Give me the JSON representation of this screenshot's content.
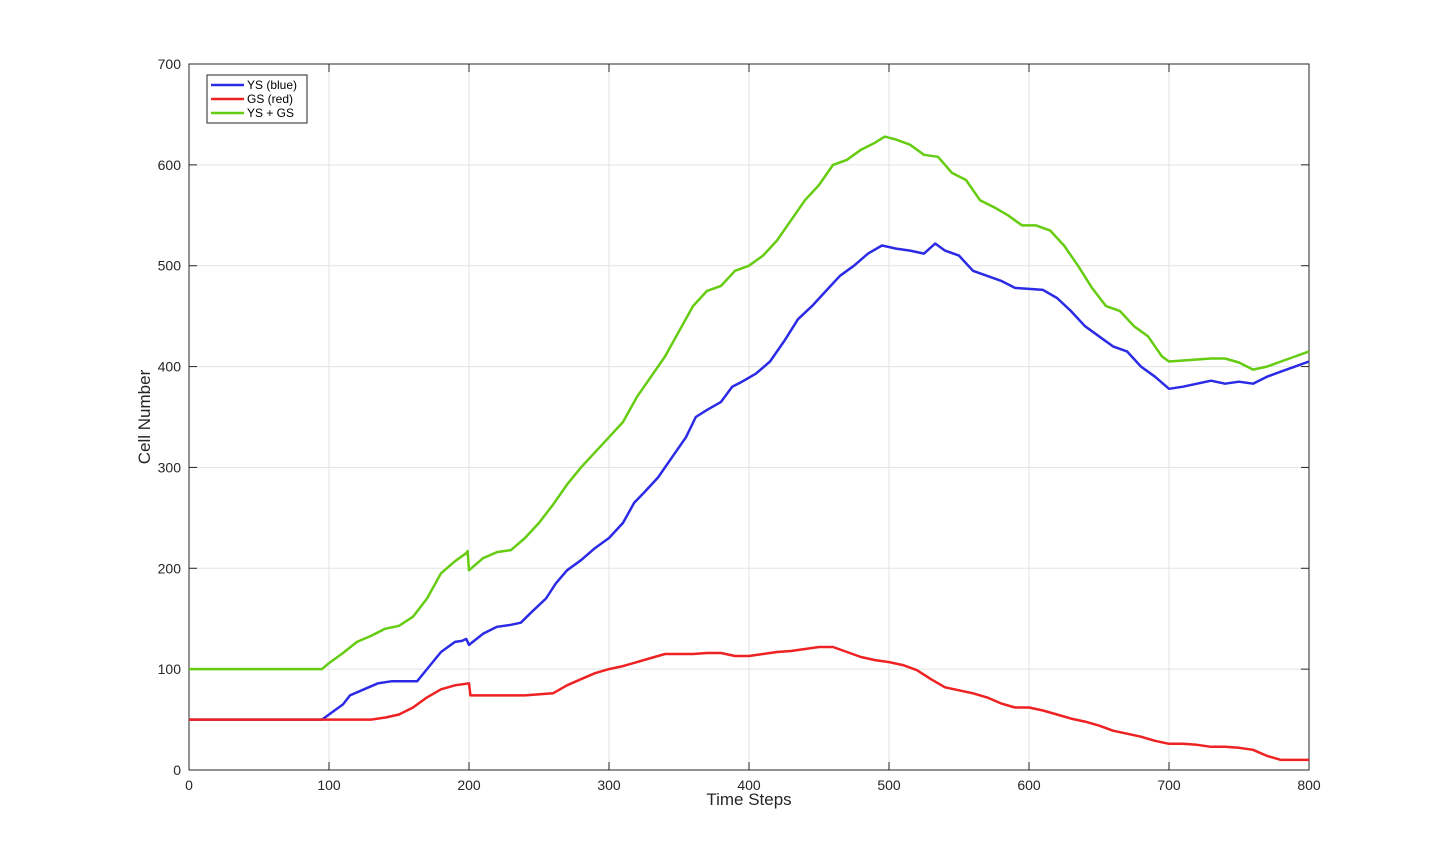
{
  "chart_data": {
    "type": "line",
    "title": "",
    "xlabel": "Time Steps",
    "ylabel": "Cell Number",
    "xlim": [
      0,
      800
    ],
    "ylim": [
      0,
      700
    ],
    "xticks": [
      0,
      100,
      200,
      300,
      400,
      500,
      600,
      700,
      800
    ],
    "yticks": [
      0,
      100,
      200,
      300,
      400,
      500,
      600,
      700
    ],
    "grid": true,
    "legend_position": "top-left",
    "series": [
      {
        "name": "YS (blue)",
        "color": "#2b2be6",
        "points": [
          [
            0,
            50
          ],
          [
            95,
            50
          ],
          [
            100,
            55
          ],
          [
            110,
            65
          ],
          [
            115,
            74
          ],
          [
            125,
            80
          ],
          [
            135,
            86
          ],
          [
            145,
            88
          ],
          [
            155,
            88
          ],
          [
            163,
            88
          ],
          [
            170,
            100
          ],
          [
            180,
            117
          ],
          [
            190,
            127
          ],
          [
            195,
            128
          ],
          [
            198,
            130
          ],
          [
            200,
            124
          ],
          [
            210,
            135
          ],
          [
            220,
            142
          ],
          [
            230,
            144
          ],
          [
            237,
            146
          ],
          [
            245,
            157
          ],
          [
            255,
            170
          ],
          [
            262,
            185
          ],
          [
            270,
            198
          ],
          [
            280,
            208
          ],
          [
            290,
            220
          ],
          [
            300,
            230
          ],
          [
            310,
            245
          ],
          [
            318,
            265
          ],
          [
            325,
            275
          ],
          [
            335,
            290
          ],
          [
            345,
            310
          ],
          [
            355,
            330
          ],
          [
            362,
            350
          ],
          [
            370,
            357
          ],
          [
            380,
            365
          ],
          [
            388,
            380
          ],
          [
            395,
            385
          ],
          [
            405,
            393
          ],
          [
            415,
            405
          ],
          [
            425,
            425
          ],
          [
            435,
            447
          ],
          [
            445,
            460
          ],
          [
            455,
            475
          ],
          [
            465,
            490
          ],
          [
            475,
            500
          ],
          [
            485,
            512
          ],
          [
            495,
            520
          ],
          [
            505,
            517
          ],
          [
            515,
            515
          ],
          [
            525,
            512
          ],
          [
            533,
            522
          ],
          [
            540,
            515
          ],
          [
            550,
            510
          ],
          [
            560,
            495
          ],
          [
            570,
            490
          ],
          [
            580,
            485
          ],
          [
            590,
            478
          ],
          [
            600,
            477
          ],
          [
            610,
            476
          ],
          [
            620,
            468
          ],
          [
            630,
            455
          ],
          [
            640,
            440
          ],
          [
            650,
            430
          ],
          [
            660,
            420
          ],
          [
            670,
            415
          ],
          [
            680,
            400
          ],
          [
            690,
            390
          ],
          [
            700,
            378
          ],
          [
            710,
            380
          ],
          [
            720,
            383
          ],
          [
            730,
            386
          ],
          [
            740,
            383
          ],
          [
            750,
            385
          ],
          [
            760,
            383
          ],
          [
            770,
            390
          ],
          [
            780,
            395
          ],
          [
            790,
            400
          ],
          [
            800,
            405
          ]
        ]
      },
      {
        "name": "GS (red)",
        "color": "#ee2222",
        "points": [
          [
            0,
            50
          ],
          [
            130,
            50
          ],
          [
            140,
            52
          ],
          [
            150,
            55
          ],
          [
            160,
            62
          ],
          [
            170,
            72
          ],
          [
            180,
            80
          ],
          [
            190,
            84
          ],
          [
            200,
            86
          ],
          [
            201,
            74
          ],
          [
            220,
            74
          ],
          [
            240,
            74
          ],
          [
            260,
            76
          ],
          [
            270,
            84
          ],
          [
            280,
            90
          ],
          [
            290,
            96
          ],
          [
            300,
            100
          ],
          [
            310,
            103
          ],
          [
            320,
            107
          ],
          [
            330,
            111
          ],
          [
            340,
            115
          ],
          [
            350,
            115
          ],
          [
            360,
            115
          ],
          [
            370,
            116
          ],
          [
            380,
            116
          ],
          [
            390,
            113
          ],
          [
            400,
            113
          ],
          [
            410,
            115
          ],
          [
            420,
            117
          ],
          [
            430,
            118
          ],
          [
            440,
            120
          ],
          [
            450,
            122
          ],
          [
            460,
            122
          ],
          [
            470,
            117
          ],
          [
            480,
            112
          ],
          [
            490,
            109
          ],
          [
            500,
            107
          ],
          [
            510,
            104
          ],
          [
            520,
            99
          ],
          [
            530,
            90
          ],
          [
            540,
            82
          ],
          [
            550,
            79
          ],
          [
            560,
            76
          ],
          [
            570,
            72
          ],
          [
            580,
            66
          ],
          [
            590,
            62
          ],
          [
            600,
            62
          ],
          [
            610,
            59
          ],
          [
            620,
            55
          ],
          [
            630,
            51
          ],
          [
            640,
            48
          ],
          [
            650,
            44
          ],
          [
            660,
            39
          ],
          [
            670,
            36
          ],
          [
            680,
            33
          ],
          [
            690,
            29
          ],
          [
            700,
            26
          ],
          [
            710,
            26
          ],
          [
            720,
            25
          ],
          [
            730,
            23
          ],
          [
            740,
            23
          ],
          [
            750,
            22
          ],
          [
            760,
            20
          ],
          [
            770,
            14
          ],
          [
            780,
            10
          ],
          [
            790,
            10
          ],
          [
            800,
            10
          ]
        ]
      },
      {
        "name": "YS + GS",
        "color": "#66cc11",
        "points": [
          [
            0,
            100
          ],
          [
            95,
            100
          ],
          [
            100,
            106
          ],
          [
            110,
            116
          ],
          [
            120,
            127
          ],
          [
            130,
            133
          ],
          [
            140,
            140
          ],
          [
            150,
            143
          ],
          [
            160,
            152
          ],
          [
            170,
            170
          ],
          [
            180,
            195
          ],
          [
            190,
            207
          ],
          [
            198,
            215
          ],
          [
            199,
            217
          ],
          [
            200,
            198
          ],
          [
            210,
            210
          ],
          [
            220,
            216
          ],
          [
            230,
            218
          ],
          [
            240,
            230
          ],
          [
            250,
            245
          ],
          [
            260,
            263
          ],
          [
            270,
            283
          ],
          [
            280,
            300
          ],
          [
            290,
            315
          ],
          [
            300,
            330
          ],
          [
            310,
            345
          ],
          [
            320,
            370
          ],
          [
            330,
            390
          ],
          [
            340,
            410
          ],
          [
            350,
            435
          ],
          [
            360,
            460
          ],
          [
            370,
            475
          ],
          [
            380,
            480
          ],
          [
            390,
            495
          ],
          [
            400,
            500
          ],
          [
            410,
            510
          ],
          [
            420,
            525
          ],
          [
            430,
            545
          ],
          [
            440,
            565
          ],
          [
            450,
            580
          ],
          [
            460,
            600
          ],
          [
            470,
            605
          ],
          [
            480,
            615
          ],
          [
            490,
            622
          ],
          [
            497,
            628
          ],
          [
            505,
            625
          ],
          [
            515,
            620
          ],
          [
            525,
            610
          ],
          [
            535,
            608
          ],
          [
            545,
            592
          ],
          [
            555,
            585
          ],
          [
            565,
            565
          ],
          [
            575,
            558
          ],
          [
            585,
            550
          ],
          [
            595,
            540
          ],
          [
            605,
            540
          ],
          [
            615,
            535
          ],
          [
            625,
            520
          ],
          [
            635,
            500
          ],
          [
            645,
            478
          ],
          [
            655,
            460
          ],
          [
            665,
            455
          ],
          [
            675,
            440
          ],
          [
            685,
            430
          ],
          [
            695,
            410
          ],
          [
            700,
            405
          ],
          [
            710,
            406
          ],
          [
            720,
            407
          ],
          [
            730,
            408
          ],
          [
            740,
            408
          ],
          [
            750,
            404
          ],
          [
            760,
            397
          ],
          [
            770,
            400
          ],
          [
            780,
            405
          ],
          [
            790,
            410
          ],
          [
            800,
            415
          ]
        ]
      }
    ]
  }
}
